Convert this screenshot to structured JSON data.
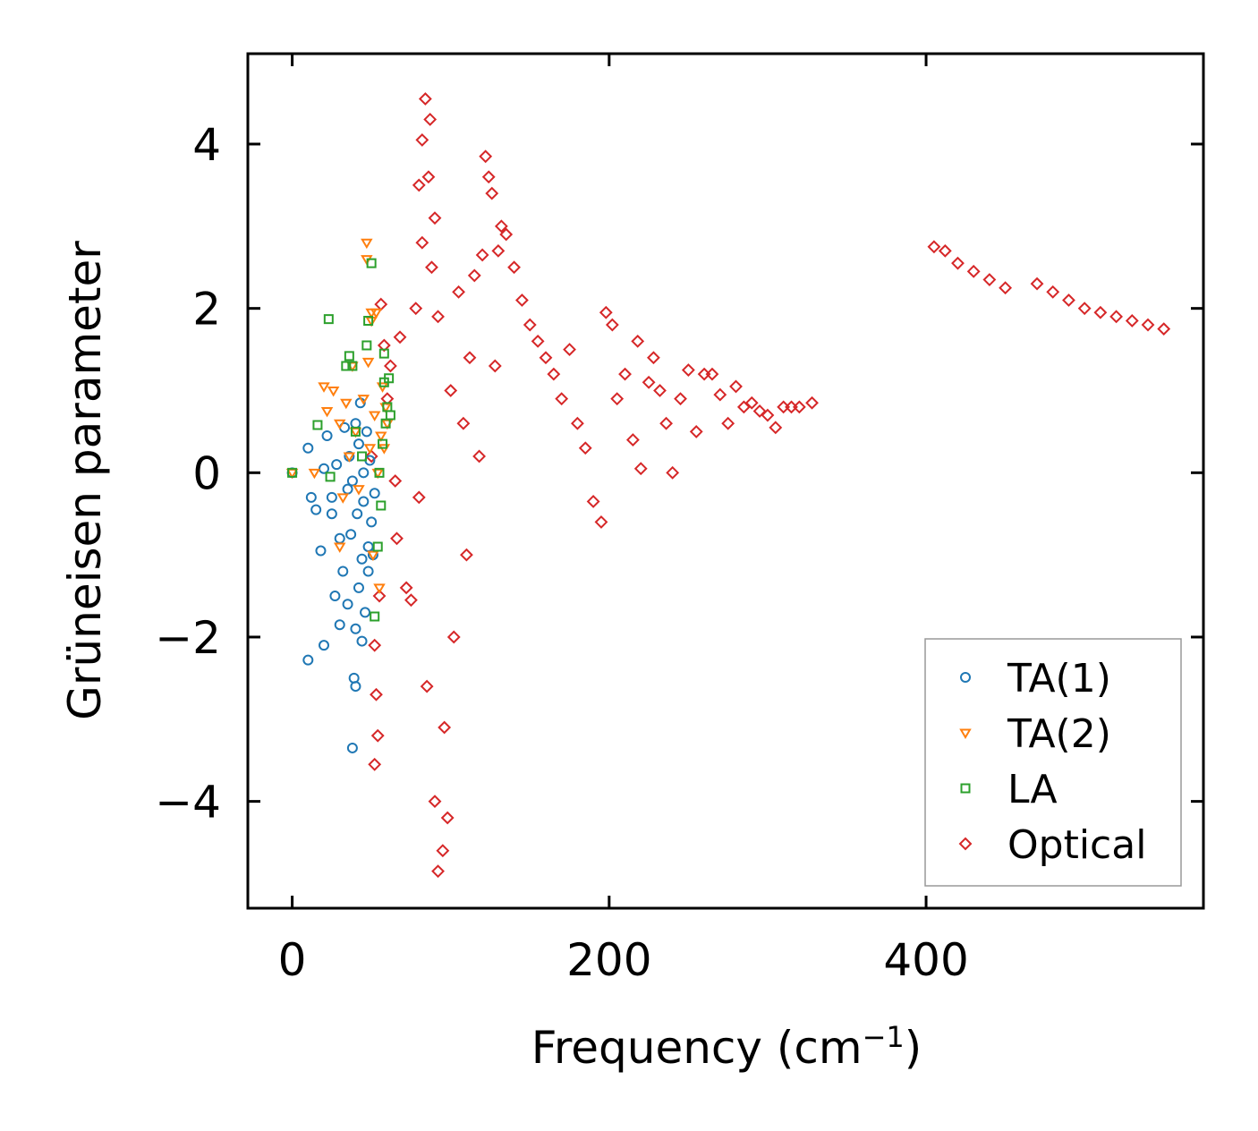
{
  "chart_data": {
    "type": "scatter",
    "title": "",
    "xlabel": "Frequency (cm",
    "xlabel_sup": "−1",
    "xlabel_close": ")",
    "ylabel": "Grüneisen parameter",
    "xlim": [
      -28,
      575
    ],
    "ylim": [
      -5.3,
      5.1
    ],
    "x_ticks": [
      0,
      200,
      400
    ],
    "x_tick_labels": [
      "0",
      "200",
      "400"
    ],
    "y_ticks": [
      -4,
      -2,
      0,
      2,
      4
    ],
    "y_tick_labels": [
      "−4",
      "−2",
      "0",
      "2",
      "4"
    ],
    "grid": false,
    "legend_position": "bottom-right",
    "series": [
      {
        "name": "TA(1)",
        "marker": "circle",
        "color": "#1f77b4",
        "points": [
          [
            0,
            0
          ],
          [
            10,
            0.3
          ],
          [
            12,
            -0.3
          ],
          [
            15,
            -0.45
          ],
          [
            18,
            -0.95
          ],
          [
            20,
            -2.1
          ],
          [
            10,
            -2.28
          ],
          [
            20,
            0.05
          ],
          [
            22,
            0.45
          ],
          [
            25,
            -0.3
          ],
          [
            25,
            -0.5
          ],
          [
            27,
            -1.5
          ],
          [
            28,
            0.1
          ],
          [
            30,
            -1.85
          ],
          [
            30,
            -0.8
          ],
          [
            32,
            -1.2
          ],
          [
            33,
            0.55
          ],
          [
            35,
            -1.6
          ],
          [
            35,
            -0.2
          ],
          [
            36,
            0.2
          ],
          [
            37,
            -0.75
          ],
          [
            38,
            -3.35
          ],
          [
            38,
            -0.1
          ],
          [
            39,
            -2.5
          ],
          [
            40,
            -2.6
          ],
          [
            40,
            0.6
          ],
          [
            40,
            -1.9
          ],
          [
            41,
            -0.5
          ],
          [
            42,
            0.35
          ],
          [
            42,
            -1.4
          ],
          [
            43,
            0.85
          ],
          [
            44,
            -2.05
          ],
          [
            44,
            -1.05
          ],
          [
            45,
            0.0
          ],
          [
            45,
            -0.35
          ],
          [
            46,
            -1.7
          ],
          [
            47,
            0.5
          ],
          [
            48,
            -0.9
          ],
          [
            48,
            -1.2
          ],
          [
            49,
            0.15
          ],
          [
            50,
            -0.6
          ],
          [
            51,
            -1.0
          ],
          [
            52,
            -0.25
          ]
        ]
      },
      {
        "name": "TA(2)",
        "marker": "triangle-down",
        "color": "#ff7f0e",
        "points": [
          [
            0,
            0
          ],
          [
            14,
            0.0
          ],
          [
            20,
            1.05
          ],
          [
            22,
            0.75
          ],
          [
            26,
            1.0
          ],
          [
            30,
            -0.9
          ],
          [
            30,
            0.6
          ],
          [
            32,
            -0.3
          ],
          [
            34,
            0.85
          ],
          [
            36,
            0.2
          ],
          [
            38,
            1.3
          ],
          [
            40,
            0.5
          ],
          [
            42,
            -0.2
          ],
          [
            45,
            0.9
          ],
          [
            47,
            2.8
          ],
          [
            47,
            2.6
          ],
          [
            48,
            1.35
          ],
          [
            49,
            0.3
          ],
          [
            50,
            1.85
          ],
          [
            50,
            1.95
          ],
          [
            51,
            -1.0
          ],
          [
            52,
            0.7
          ],
          [
            53,
            1.95
          ],
          [
            54,
            0.0
          ],
          [
            55,
            -1.4
          ],
          [
            56,
            0.45
          ],
          [
            57,
            1.05
          ],
          [
            58,
            0.3
          ],
          [
            59,
            0.8
          ],
          [
            60,
            0.6
          ]
        ]
      },
      {
        "name": "LA",
        "marker": "square",
        "color": "#2ca02c",
        "points": [
          [
            0,
            0
          ],
          [
            16,
            0.58
          ],
          [
            23,
            1.87
          ],
          [
            24,
            -0.05
          ],
          [
            34,
            1.3
          ],
          [
            36,
            1.42
          ],
          [
            38,
            1.3
          ],
          [
            40,
            0.5
          ],
          [
            44,
            0.2
          ],
          [
            47,
            1.55
          ],
          [
            48,
            1.85
          ],
          [
            50,
            2.55
          ],
          [
            52,
            -1.75
          ],
          [
            54,
            -0.9
          ],
          [
            55,
            0.0
          ],
          [
            56,
            -0.4
          ],
          [
            57,
            0.35
          ],
          [
            58,
            1.1
          ],
          [
            58,
            1.45
          ],
          [
            59,
            0.6
          ],
          [
            60,
            0.8
          ],
          [
            61,
            1.15
          ],
          [
            62,
            0.7
          ]
        ]
      },
      {
        "name": "Optical",
        "marker": "diamond",
        "color": "#d62728",
        "points": [
          [
            50,
            0.2
          ],
          [
            52,
            -2.1
          ],
          [
            52,
            -3.55
          ],
          [
            53,
            -2.7
          ],
          [
            54,
            -3.2
          ],
          [
            55,
            -1.5
          ],
          [
            56,
            2.05
          ],
          [
            58,
            1.55
          ],
          [
            60,
            0.9
          ],
          [
            62,
            1.3
          ],
          [
            65,
            -0.1
          ],
          [
            66,
            -0.8
          ],
          [
            68,
            1.65
          ],
          [
            72,
            -1.4
          ],
          [
            75,
            -1.55
          ],
          [
            78,
            2.0
          ],
          [
            80,
            -0.3
          ],
          [
            80,
            3.5
          ],
          [
            82,
            4.05
          ],
          [
            82,
            2.8
          ],
          [
            84,
            4.55
          ],
          [
            85,
            -2.6
          ],
          [
            86,
            3.6
          ],
          [
            87,
            4.3
          ],
          [
            88,
            2.5
          ],
          [
            90,
            3.1
          ],
          [
            90,
            -4.0
          ],
          [
            92,
            1.9
          ],
          [
            92,
            -4.85
          ],
          [
            95,
            -4.6
          ],
          [
            96,
            -3.1
          ],
          [
            98,
            -4.2
          ],
          [
            100,
            1.0
          ],
          [
            102,
            -2.0
          ],
          [
            105,
            2.2
          ],
          [
            108,
            0.6
          ],
          [
            110,
            -1.0
          ],
          [
            112,
            1.4
          ],
          [
            115,
            2.4
          ],
          [
            118,
            0.2
          ],
          [
            120,
            2.65
          ],
          [
            122,
            3.85
          ],
          [
            124,
            3.6
          ],
          [
            126,
            3.4
          ],
          [
            128,
            1.3
          ],
          [
            130,
            2.7
          ],
          [
            132,
            3.0
          ],
          [
            135,
            2.9
          ],
          [
            140,
            2.5
          ],
          [
            145,
            2.1
          ],
          [
            150,
            1.8
          ],
          [
            155,
            1.6
          ],
          [
            160,
            1.4
          ],
          [
            165,
            1.2
          ],
          [
            170,
            0.9
          ],
          [
            175,
            1.5
          ],
          [
            180,
            0.6
          ],
          [
            185,
            0.3
          ],
          [
            190,
            -0.35
          ],
          [
            195,
            -0.6
          ],
          [
            198,
            1.95
          ],
          [
            202,
            1.8
          ],
          [
            205,
            0.9
          ],
          [
            210,
            1.2
          ],
          [
            215,
            0.4
          ],
          [
            218,
            1.6
          ],
          [
            220,
            0.05
          ],
          [
            225,
            1.1
          ],
          [
            228,
            1.4
          ],
          [
            232,
            1.0
          ],
          [
            236,
            0.6
          ],
          [
            240,
            0.0
          ],
          [
            245,
            0.9
          ],
          [
            250,
            1.25
          ],
          [
            255,
            0.5
          ],
          [
            260,
            1.2
          ],
          [
            265,
            1.2
          ],
          [
            270,
            0.95
          ],
          [
            275,
            0.6
          ],
          [
            280,
            1.05
          ],
          [
            285,
            0.8
          ],
          [
            290,
            0.85
          ],
          [
            295,
            0.75
          ],
          [
            300,
            0.7
          ],
          [
            305,
            0.55
          ],
          [
            310,
            0.8
          ],
          [
            315,
            0.8
          ],
          [
            320,
            0.8
          ],
          [
            328,
            0.85
          ],
          [
            405,
            2.75
          ],
          [
            412,
            2.7
          ],
          [
            420,
            2.55
          ],
          [
            430,
            2.45
          ],
          [
            440,
            2.35
          ],
          [
            450,
            2.25
          ],
          [
            470,
            2.3
          ],
          [
            480,
            2.2
          ],
          [
            490,
            2.1
          ],
          [
            500,
            2.0
          ],
          [
            510,
            1.95
          ],
          [
            520,
            1.9
          ],
          [
            530,
            1.85
          ],
          [
            540,
            1.8
          ],
          [
            550,
            1.75
          ]
        ]
      }
    ]
  }
}
